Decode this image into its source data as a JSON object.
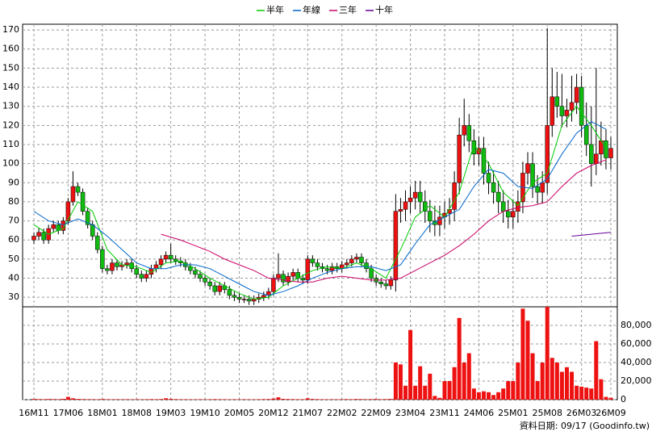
{
  "chart_data": {
    "type": "candlestick",
    "categories": [
      "16M11",
      null,
      null,
      null,
      null,
      null,
      null,
      "17M06",
      null,
      null,
      null,
      null,
      null,
      null,
      "18M01",
      null,
      null,
      null,
      null,
      null,
      null,
      "18M08",
      null,
      null,
      null,
      null,
      null,
      null,
      "19M03",
      null,
      null,
      null,
      null,
      null,
      null,
      "19M10",
      null,
      null,
      null,
      null,
      null,
      null,
      "20M05",
      null,
      null,
      null,
      null,
      null,
      null,
      "20M12",
      null,
      null,
      null,
      null,
      null,
      null,
      "21M07",
      null,
      null,
      null,
      null,
      null,
      null,
      "22M02",
      null,
      null,
      null,
      null,
      null,
      null,
      "22M09",
      null,
      null,
      null,
      null,
      null,
      null,
      "23M04",
      null,
      null,
      null,
      null,
      null,
      null,
      "23M11",
      null,
      null,
      null,
      null,
      null,
      null,
      "24M06",
      null,
      null,
      null,
      null,
      null,
      null,
      "25M01",
      null,
      null,
      null,
      null,
      null,
      null,
      "25M08",
      null,
      null,
      null,
      null,
      null,
      null,
      "26M03",
      null,
      null,
      null,
      null,
      null,
      "26M09"
    ],
    "open": [
      60,
      62,
      64,
      60,
      66,
      68,
      65,
      70,
      80,
      88,
      85,
      75,
      68,
      62,
      55,
      45,
      44,
      48,
      46,
      47,
      48,
      45,
      42,
      40,
      42,
      45,
      47,
      50,
      52,
      50,
      49,
      48,
      46,
      44,
      42,
      40,
      38,
      36,
      33,
      36,
      34,
      31,
      30,
      29,
      29,
      28,
      29,
      30,
      31,
      33,
      40,
      42,
      38,
      41,
      43,
      40,
      39,
      50,
      48,
      46,
      45,
      44,
      46,
      45,
      47,
      48,
      50,
      51,
      48,
      45,
      40,
      38,
      37,
      36,
      39,
      75,
      76,
      80,
      82,
      85,
      80,
      75,
      70,
      68,
      72,
      74,
      76,
      90,
      115,
      120,
      112,
      105,
      108,
      95,
      90,
      85,
      80,
      75,
      72,
      75,
      80,
      95,
      100,
      88,
      85,
      90,
      120,
      135,
      130,
      125,
      128,
      132,
      140,
      120,
      110,
      100,
      105,
      112,
      103
    ],
    "high": [
      64,
      66,
      66,
      68,
      70,
      70,
      72,
      82,
      96,
      90,
      87,
      77,
      70,
      64,
      57,
      47,
      50,
      50,
      49,
      50,
      50,
      47,
      44,
      44,
      47,
      49,
      52,
      54,
      58,
      52,
      51,
      50,
      48,
      46,
      44,
      42,
      40,
      38,
      38,
      38,
      36,
      33,
      32,
      31,
      31,
      31,
      32,
      33,
      35,
      42,
      53,
      44,
      43,
      45,
      45,
      42,
      52,
      52,
      50,
      48,
      47,
      48,
      48,
      49,
      50,
      52,
      53,
      53,
      50,
      47,
      42,
      40,
      39,
      41,
      84,
      82,
      86,
      88,
      91,
      91,
      86,
      81,
      78,
      78,
      80,
      82,
      96,
      124,
      134,
      126,
      118,
      114,
      114,
      101,
      96,
      91,
      86,
      81,
      81,
      86,
      101,
      106,
      106,
      94,
      96,
      171,
      150,
      148,
      147,
      134,
      146,
      147,
      146,
      132,
      130,
      150,
      122,
      118,
      114
    ],
    "low": [
      58,
      60,
      58,
      58,
      64,
      63,
      63,
      68,
      78,
      83,
      73,
      66,
      60,
      53,
      43,
      42,
      42,
      44,
      44,
      45,
      43,
      40,
      38,
      38,
      40,
      43,
      45,
      48,
      48,
      47,
      46,
      44,
      42,
      40,
      38,
      36,
      34,
      31,
      31,
      32,
      29,
      28,
      27,
      27,
      26,
      26,
      27,
      28,
      29,
      31,
      38,
      36,
      36,
      39,
      38,
      37,
      37,
      46,
      44,
      43,
      42,
      42,
      43,
      43,
      45,
      46,
      48,
      46,
      43,
      38,
      36,
      35,
      34,
      34,
      33,
      69,
      70,
      74,
      76,
      74,
      69,
      64,
      62,
      62,
      66,
      68,
      70,
      84,
      109,
      106,
      99,
      99,
      89,
      84,
      79,
      74,
      69,
      66,
      66,
      69,
      74,
      89,
      82,
      79,
      79,
      84,
      114,
      124,
      119,
      119,
      122,
      126,
      114,
      104,
      88,
      94,
      99,
      97,
      97
    ],
    "close": [
      62,
      64,
      60,
      66,
      68,
      65,
      70,
      80,
      88,
      85,
      75,
      68,
      62,
      55,
      45,
      44,
      48,
      46,
      47,
      48,
      45,
      42,
      40,
      42,
      45,
      47,
      50,
      52,
      50,
      49,
      48,
      46,
      44,
      42,
      40,
      38,
      36,
      33,
      36,
      34,
      31,
      30,
      29,
      29,
      28,
      29,
      30,
      31,
      33,
      40,
      42,
      38,
      41,
      43,
      40,
      39,
      50,
      48,
      46,
      45,
      44,
      46,
      45,
      47,
      48,
      50,
      51,
      48,
      45,
      40,
      38,
      37,
      36,
      39,
      75,
      76,
      80,
      82,
      85,
      80,
      75,
      70,
      68,
      72,
      74,
      76,
      90,
      115,
      120,
      112,
      105,
      108,
      95,
      90,
      85,
      80,
      75,
      72,
      75,
      80,
      95,
      100,
      88,
      85,
      90,
      120,
      135,
      130,
      125,
      128,
      132,
      140,
      120,
      110,
      100,
      105,
      112,
      103,
      108
    ],
    "volume": [
      800,
      600,
      500,
      700,
      600,
      500,
      900,
      3000,
      1500,
      800,
      600,
      500,
      500,
      400,
      700,
      500,
      400,
      500,
      400,
      500,
      400,
      500,
      400,
      500,
      600,
      500,
      700,
      1500,
      900,
      600,
      500,
      500,
      400,
      400,
      500,
      400,
      500,
      600,
      500,
      500,
      400,
      500,
      400,
      500,
      400,
      400,
      500,
      600,
      700,
      1200,
      2500,
      900,
      700,
      600,
      500,
      500,
      1500,
      800,
      600,
      500,
      400,
      500,
      400,
      500,
      600,
      500,
      700,
      600,
      500,
      600,
      700,
      500,
      600,
      800,
      40000,
      38000,
      15000,
      75000,
      15000,
      36000,
      15000,
      28000,
      4000,
      2000,
      20000,
      20000,
      35000,
      88000,
      40000,
      50000,
      12000,
      8000,
      9000,
      8000,
      5000,
      8000,
      12000,
      20000,
      20000,
      40000,
      98000,
      85000,
      50000,
      20000,
      40000,
      100000,
      45000,
      40000,
      30000,
      35000,
      30000,
      15000,
      14000,
      13000,
      12000,
      63000,
      22000,
      3000,
      2000
    ],
    "up_color": "#ee1111",
    "down_color": "#11bb11",
    "volume_color": "#ee1111",
    "ma_series": [
      {
        "name": "半年",
        "color": "#00cc00",
        "x": [
          0,
          3,
          6,
          9,
          12,
          15,
          18,
          21,
          24,
          27,
          30,
          33,
          36,
          39,
          42,
          45,
          48,
          51,
          54,
          57,
          60,
          63,
          66,
          69,
          72,
          75,
          78,
          81,
          84,
          87,
          90,
          93,
          96,
          99,
          102,
          105,
          108,
          111,
          114,
          117
        ],
        "values": [
          68,
          63,
          66,
          80,
          75,
          55,
          47,
          46,
          43,
          48,
          49,
          45,
          40,
          36,
          32,
          29,
          30,
          36,
          40,
          44,
          46,
          45,
          48,
          45,
          40,
          55,
          72,
          78,
          72,
          85,
          110,
          100,
          85,
          78,
          90,
          95,
          120,
          130,
          120,
          108
        ]
      },
      {
        "name": "年線",
        "color": "#0066cc",
        "x": [
          0,
          3,
          6,
          9,
          12,
          15,
          18,
          21,
          24,
          27,
          30,
          33,
          36,
          39,
          42,
          45,
          48,
          51,
          54,
          57,
          60,
          63,
          66,
          69,
          72,
          75,
          78,
          81,
          84,
          87,
          90,
          93,
          96,
          99,
          102,
          105,
          108,
          111,
          114,
          117
        ],
        "values": [
          75,
          70,
          68,
          71,
          68,
          62,
          55,
          48,
          45,
          45,
          47,
          47,
          45,
          41,
          37,
          33,
          31,
          33,
          36,
          40,
          43,
          45,
          46,
          46,
          44,
          47,
          58,
          68,
          72,
          76,
          88,
          97,
          95,
          88,
          87,
          92,
          105,
          116,
          122,
          118
        ]
      },
      {
        "name": "三年",
        "color": "#cc0066",
        "x": [
          26,
          30,
          33,
          36,
          39,
          42,
          45,
          48,
          51,
          54,
          57,
          60,
          63,
          66,
          69,
          72,
          75,
          78,
          81,
          84,
          87,
          90,
          93,
          96,
          99,
          102,
          105,
          108,
          111,
          114,
          117
        ],
        "values": [
          63,
          60,
          57,
          54,
          50,
          47,
          44,
          40,
          39,
          38,
          38,
          40,
          41,
          40,
          39,
          39,
          40,
          44,
          48,
          52,
          57,
          63,
          70,
          75,
          77,
          78,
          80,
          88,
          95,
          99,
          102
        ]
      },
      {
        "name": "十年",
        "color": "#660099",
        "x": [
          110,
          114,
          118
        ],
        "values": [
          62,
          63,
          64
        ]
      }
    ],
    "ylim": [
      25,
      173
    ],
    "yticks": [
      30,
      40,
      50,
      60,
      70,
      80,
      90,
      100,
      110,
      120,
      130,
      140,
      150,
      160,
      170
    ],
    "volume_ylim": [
      0,
      100000
    ],
    "volume_ticks": [
      0,
      {
        "value": 20000,
        "label": "20,000"
      },
      {
        "value": 40000,
        "label": "40,000"
      },
      {
        "value": 60000,
        "label": "60,000"
      },
      {
        "value": 80000,
        "label": "80,000"
      }
    ],
    "grid": true,
    "source_note": "資料日期: 09/17 (Goodinfo.tw)"
  }
}
